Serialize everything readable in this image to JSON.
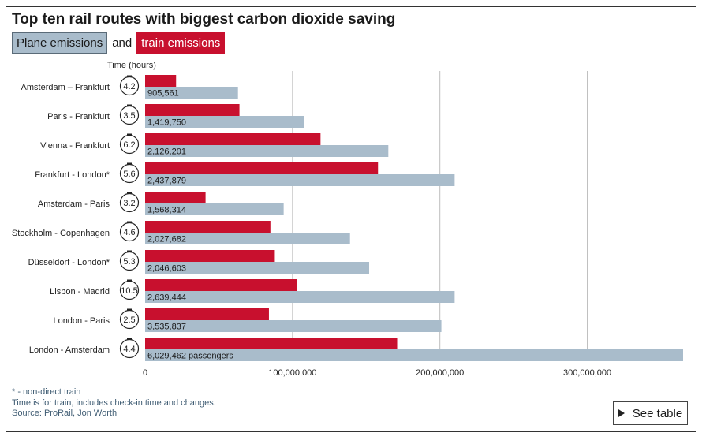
{
  "title": "Top ten rail routes with biggest carbon dioxide saving",
  "legend": {
    "plane": "Plane emissions",
    "and": "and",
    "train": "train emissions"
  },
  "time_header": "Time (hours)",
  "colors": {
    "plane": "#a9bccb",
    "train": "#c8102e",
    "grid": "#bdbdbd",
    "note": "#3f5c73"
  },
  "chart_data": {
    "type": "bar",
    "orientation": "horizontal",
    "categories": [
      "Amsterdam – Frankfurt",
      "Paris - Frankfurt",
      "Vienna - Frankfurt",
      "Frankfurt - London*",
      "Amsterdam - Paris",
      "Stockholm - Copenhagen",
      "Düsseldorf - London*",
      "Lisbon - Madrid",
      "London - Paris",
      "London - Amsterdam"
    ],
    "times": [
      "4.2",
      "3.5",
      "6.2",
      "5.6",
      "3.2",
      "4.6",
      "5.3",
      "10.5",
      "2.5",
      "4.4"
    ],
    "passenger_labels": [
      "905,561",
      "1,419,750",
      "2,126,201",
      "2,437,879",
      "1,568,314",
      "2,027,682",
      "2,046,603",
      "2,639,444",
      "3,535,837",
      "6,029,462 passengers"
    ],
    "series": [
      {
        "name": "train emissions",
        "values": [
          21000000,
          64000000,
          119000000,
          158000000,
          41000000,
          85000000,
          88000000,
          103000000,
          84000000,
          171000000
        ]
      },
      {
        "name": "Plane emissions",
        "values": [
          63000000,
          108000000,
          165000000,
          210000000,
          94000000,
          139000000,
          152000000,
          210000000,
          201000000,
          365000000
        ]
      }
    ],
    "xlim": [
      0,
      365000000
    ],
    "x_ticks": [
      0,
      100000000,
      200000000,
      300000000
    ],
    "x_tick_labels": [
      "0",
      "100,000,000",
      "200,000,000",
      "300,000,000"
    ],
    "grid": true
  },
  "notes": [
    "* - non-direct train",
    "Time is for train, includes check-in time and changes.",
    "Source: ProRail, Jon Worth"
  ],
  "see_table": "See table"
}
